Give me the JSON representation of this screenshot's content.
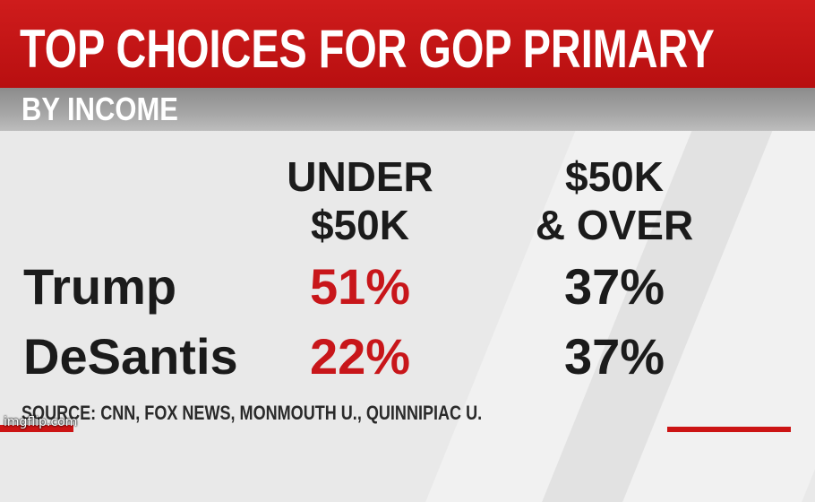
{
  "header": {
    "title": "TOP CHOICES FOR GOP PRIMARY",
    "subtitle": "BY INCOME"
  },
  "columns": [
    {
      "line1": "UNDER",
      "line2": "$50K"
    },
    {
      "line1": "$50K",
      "line2": "& OVER"
    }
  ],
  "rows": [
    {
      "label": "Trump",
      "values": [
        "51%",
        "37%"
      ]
    },
    {
      "label": "DeSantis",
      "values": [
        "22%",
        "37%"
      ]
    }
  ],
  "source": "SOURCE: CNN, FOX NEWS, MONMOUTH U., QUINNIPIAC U.",
  "watermark": "imgflip.com",
  "colors": {
    "header_red": "#c41414",
    "highlight_red": "#c8161a",
    "text_dark": "#1b1b1b"
  }
}
